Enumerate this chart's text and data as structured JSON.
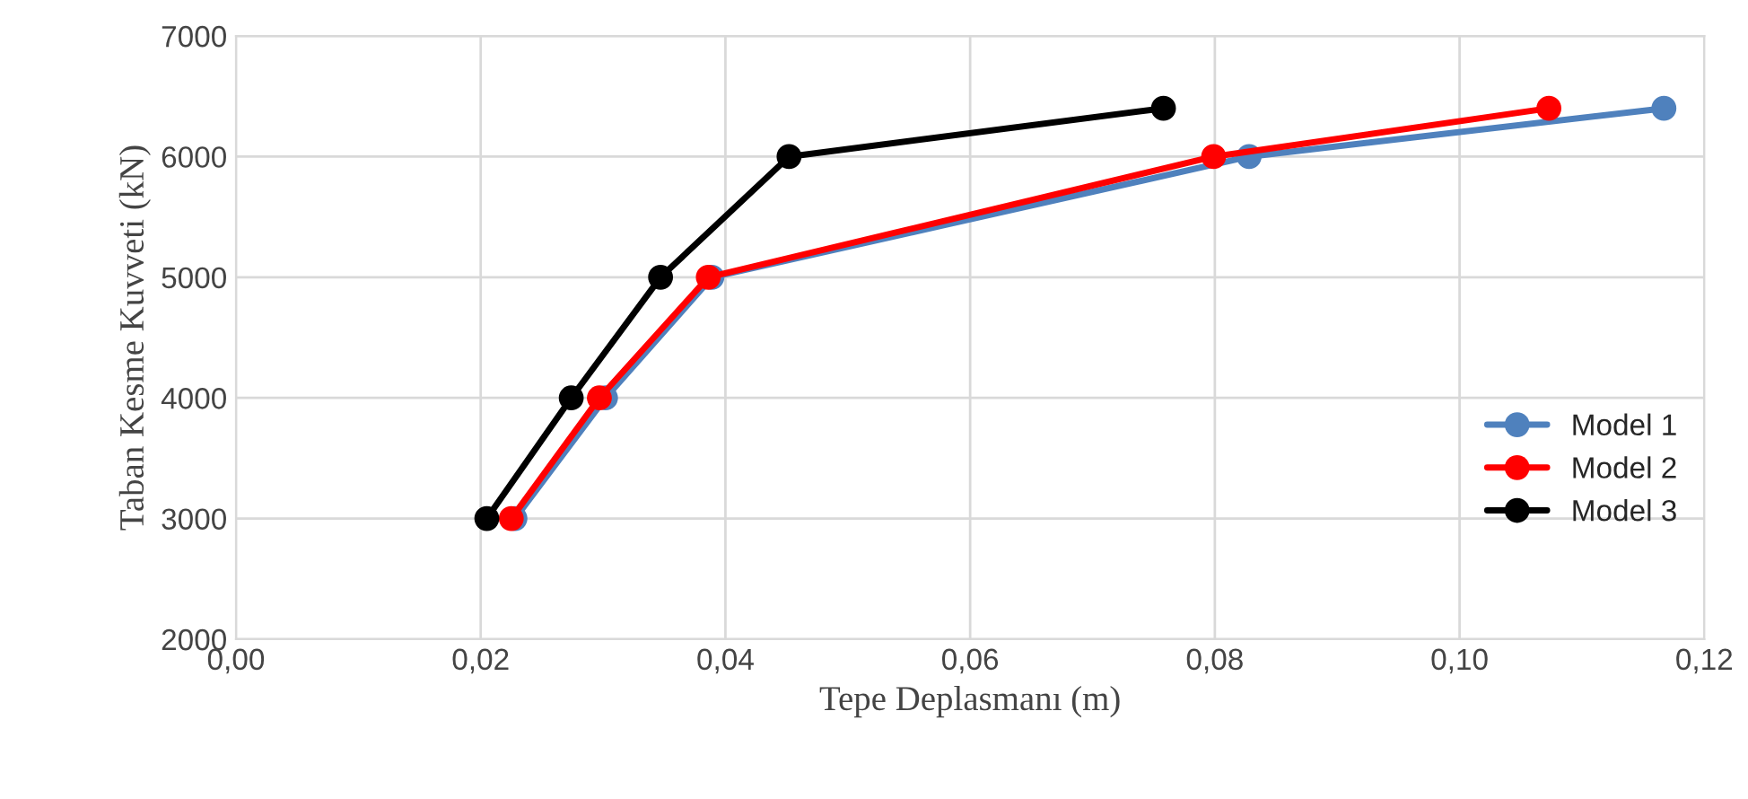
{
  "chart_data": {
    "type": "line",
    "xlabel": "Tepe Deplasmanı (m)",
    "ylabel": "Taban Kesme Kuvveti (kN)",
    "series": [
      {
        "name": "Model 1",
        "color": "#4f81bd",
        "x": [
          0.0228,
          0.0302,
          0.0389,
          0.0828,
          0.1167
        ],
        "values": [
          3000,
          4000,
          5000,
          6000,
          6400
        ]
      },
      {
        "name": "Model 2",
        "color": "#ff0000",
        "x": [
          0.0225,
          0.0297,
          0.0386,
          0.0799,
          0.1073
        ],
        "values": [
          3000,
          4000,
          5000,
          6000,
          6400
        ]
      },
      {
        "name": "Model 3",
        "color": "#000000",
        "x": [
          0.0205,
          0.0274,
          0.0347,
          0.0452,
          0.0758
        ],
        "values": [
          3000,
          4000,
          5000,
          6000,
          6400
        ]
      }
    ],
    "xlim": [
      0,
      0.12
    ],
    "xticks": [
      {
        "value": 0,
        "label": "0,00"
      },
      {
        "value": 0.02,
        "label": "0,02"
      },
      {
        "value": 0.04,
        "label": "0,04"
      },
      {
        "value": 0.06,
        "label": "0,06"
      },
      {
        "value": 0.08,
        "label": "0,08"
      },
      {
        "value": 0.1,
        "label": "0,10"
      },
      {
        "value": 0.12,
        "label": "0,12"
      }
    ],
    "ylim": [
      2000,
      7000
    ],
    "yticks": [
      2000,
      3000,
      4000,
      5000,
      6000,
      7000
    ],
    "grid": true,
    "legend": "right",
    "marker": "circle",
    "line_style": "solid"
  }
}
